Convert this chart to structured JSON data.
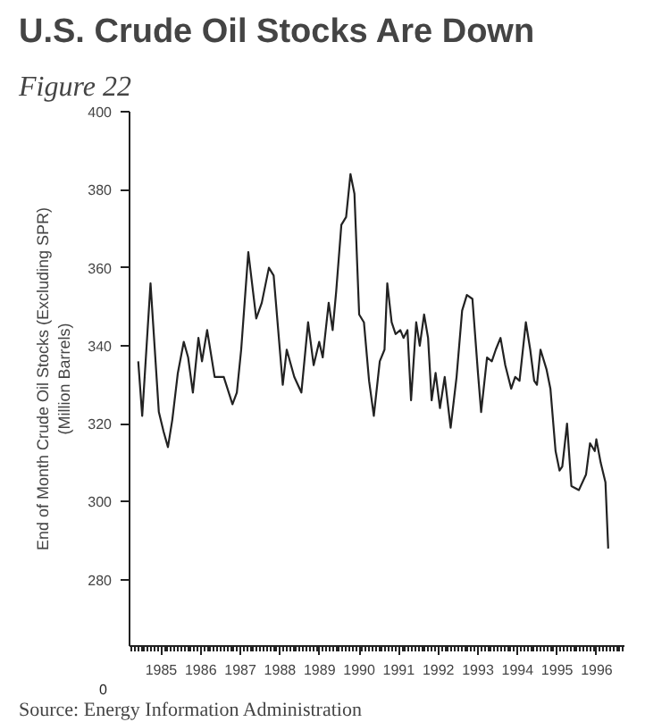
{
  "chart_data": [
    {
      "type": "line",
      "title": "U.S. Crude Oil Stocks Are Down",
      "ylabel": "End of Month Crude Oil Stocks (Excluding SPR)\n(Million Barrels)",
      "annotations": [
        "Figure 22",
        "0",
        "Source: Energy Information Administration"
      ],
      "xlim": [
        1984.7,
        1997.2
      ],
      "ylim": [
        263,
        400
      ],
      "yticks": [
        280,
        300,
        320,
        340,
        360,
        380,
        400
      ],
      "grid": false,
      "xticks": [
        {
          "value": 1985.5,
          "label": "1985"
        },
        {
          "value": 1986.5,
          "label": "1986"
        },
        {
          "value": 1987.5,
          "label": "1987"
        },
        {
          "value": 1988.5,
          "label": "1988"
        },
        {
          "value": 1989.5,
          "label": "1989"
        },
        {
          "value": 1990.5,
          "label": "1990"
        },
        {
          "value": 1991.5,
          "label": "1991"
        },
        {
          "value": 1992.5,
          "label": "1992"
        },
        {
          "value": 1993.5,
          "label": "1993"
        },
        {
          "value": 1994.5,
          "label": "1994"
        },
        {
          "value": 1995.5,
          "label": "1995"
        },
        {
          "value": 1996.5,
          "label": "1996"
        }
      ],
      "series": [
        {
          "color": "#222222",
          "x": [
            1984.92,
            1985.02,
            1985.23,
            1985.44,
            1985.56,
            1985.67,
            1985.78,
            1985.92,
            1986.07,
            1986.18,
            1986.3,
            1986.44,
            1986.53,
            1986.66,
            1986.85,
            1987.08,
            1987.3,
            1987.41,
            1987.52,
            1987.7,
            1987.9,
            1988.04,
            1988.22,
            1988.34,
            1988.57,
            1988.67,
            1988.86,
            1989.04,
            1989.21,
            1989.35,
            1989.49,
            1989.58,
            1989.73,
            1989.83,
            1989.92,
            1990.05,
            1990.17,
            1990.28,
            1990.38,
            1990.5,
            1990.62,
            1990.75,
            1990.87,
            1991.02,
            1991.14,
            1991.21,
            1991.32,
            1991.42,
            1991.54,
            1991.62,
            1991.72,
            1991.81,
            1991.94,
            1992.03,
            1992.14,
            1992.24,
            1992.33,
            1992.43,
            1992.54,
            1992.66,
            1992.81,
            1992.96,
            1993.1,
            1993.22,
            1993.36,
            1993.5,
            1993.58,
            1993.73,
            1993.85,
            1993.95,
            1994.07,
            1994.19,
            1994.34,
            1994.44,
            1994.55,
            1994.71,
            1994.82,
            1994.92,
            1994.99,
            1995.08,
            1995.23,
            1995.33,
            1995.46,
            1995.56,
            1995.63,
            1995.75,
            1995.86,
            1996.05,
            1996.23,
            1996.33,
            1996.45,
            1996.49,
            1996.6,
            1996.72,
            1996.79
          ],
          "values": [
            336,
            322,
            356,
            323,
            318,
            314,
            321,
            333,
            341,
            337,
            328,
            342,
            336,
            344,
            332,
            332,
            325,
            328,
            339,
            364,
            347,
            351,
            360,
            358,
            330,
            339,
            332,
            328,
            346,
            335,
            341,
            337,
            351,
            344,
            354,
            371,
            373,
            384,
            379,
            348,
            346,
            331,
            322,
            336,
            339,
            356,
            346,
            343,
            344,
            342,
            344,
            326,
            346,
            340,
            348,
            342,
            326,
            333,
            324,
            332,
            319,
            332,
            349,
            353,
            352,
            333,
            323,
            337,
            336,
            339,
            342,
            335,
            329,
            332,
            331,
            346,
            339,
            331,
            330,
            339,
            334,
            329,
            313,
            308,
            309,
            320,
            304,
            303,
            307,
            315,
            313,
            316,
            310,
            305,
            288
          ]
        }
      ]
    }
  ]
}
